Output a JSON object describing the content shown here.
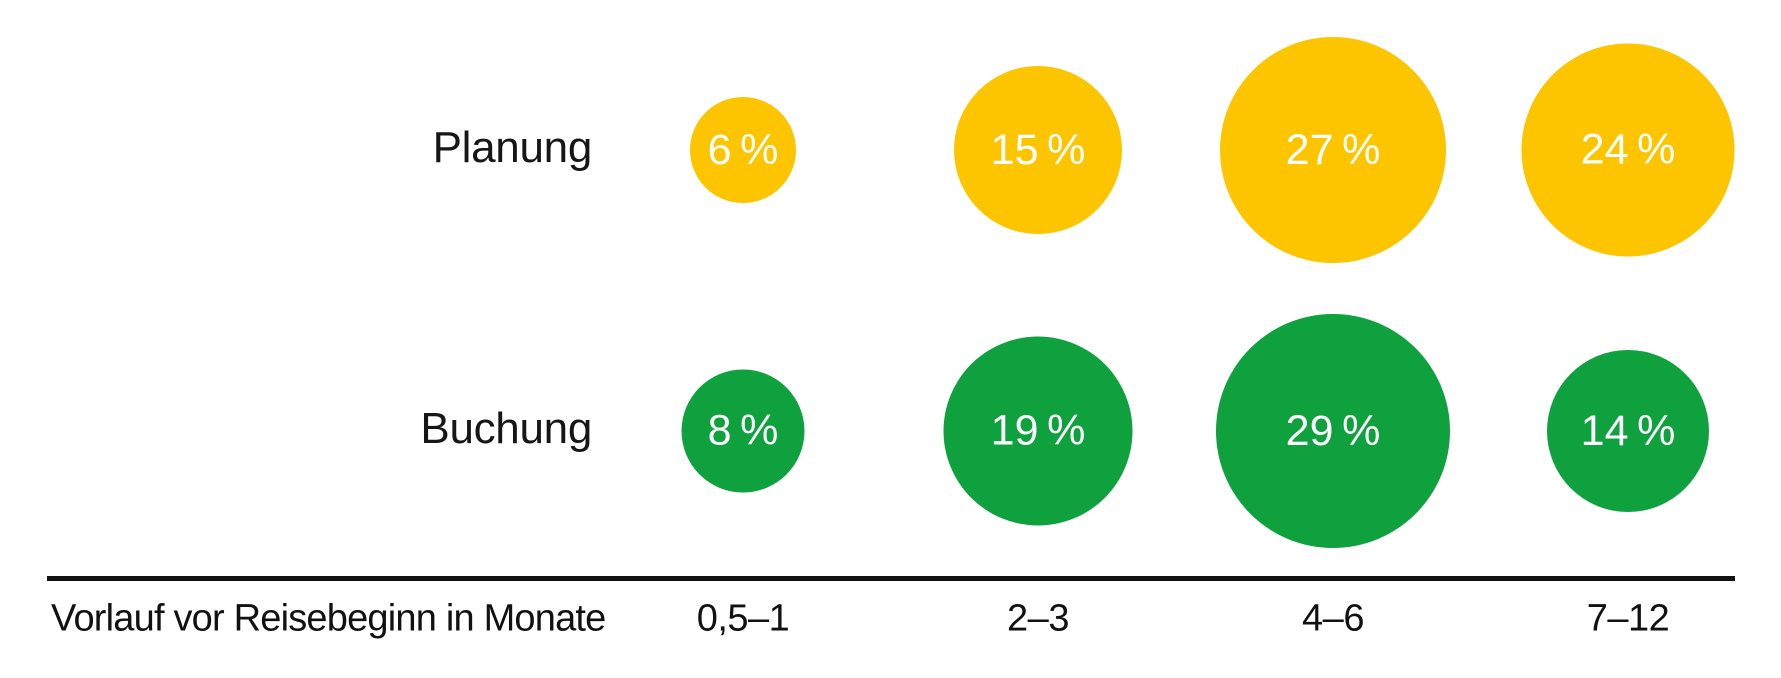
{
  "chart_data": {
    "type": "scatter",
    "subtype": "bubble",
    "categories": [
      "0,5–1",
      "2–3",
      "4–6",
      "7–12"
    ],
    "series": [
      {
        "name": "Planung",
        "values": [
          6,
          15,
          27,
          24
        ],
        "labels": [
          "6 %",
          "15 %",
          "27 %",
          "24 %"
        ],
        "color": "#FDC500"
      },
      {
        "name": "Buchung",
        "values": [
          8,
          19,
          29,
          14
        ],
        "labels": [
          "8 %",
          "19 %",
          "29 %",
          "14 %"
        ],
        "color": "#0EA13D"
      }
    ],
    "xlabel": "Vorlauf vor Reisebeginn in Monate",
    "value_unit": "%",
    "sizing": "area-proportional",
    "axis_line_color": "#111111",
    "label_text_color": "#161616",
    "bubble_text_color": "#ffffff",
    "legend_position": "row-labels-left",
    "grid": false
  }
}
